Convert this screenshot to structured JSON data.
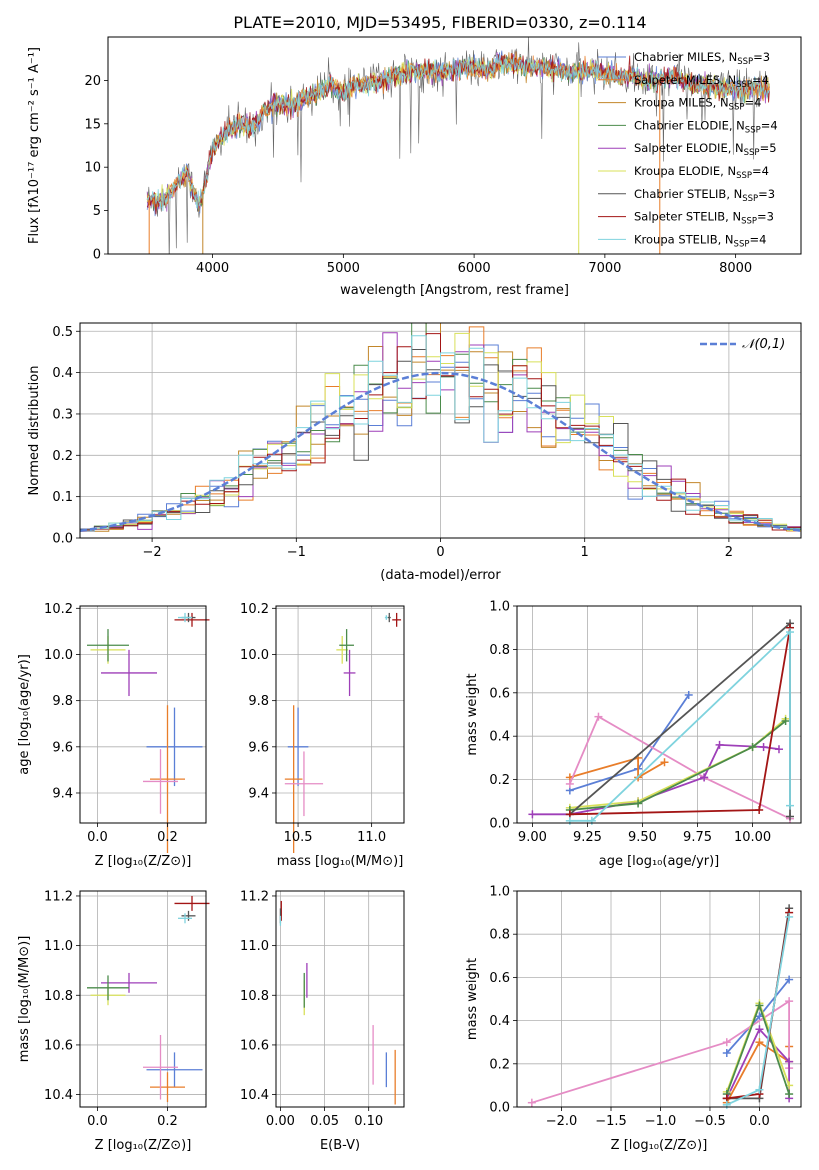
{
  "figure": {
    "title": "PLATE=2010, MJD=53495, FIBERID=0330, z=0.114"
  },
  "chart_data": [
    {
      "id": "spectrum",
      "type": "line",
      "xlabel": "wavelength [Angstrom, rest frame]",
      "ylabel": "Flux [fλ10⁻¹⁷ erg cm⁻² s⁻¹ A⁻¹]",
      "xlim": [
        3200,
        8500
      ],
      "ylim": [
        0,
        25
      ],
      "xticks": [
        4000,
        5000,
        6000,
        7000,
        8000
      ],
      "yticks": [
        0,
        5,
        10,
        15,
        20
      ],
      "grid": false,
      "legend_position": "right",
      "x": [
        3520,
        3600,
        3700,
        3800,
        3900,
        4000,
        4100,
        4200,
        4300,
        4400,
        4500,
        4600,
        4700,
        4800,
        4900,
        5000,
        5100,
        5200,
        5300,
        5400,
        5500,
        5600,
        5700,
        5800,
        5900,
        6000,
        6100,
        6200,
        6300,
        6400,
        6500,
        6600,
        6700,
        6800,
        6900,
        7000,
        7100,
        7200,
        7300,
        7400,
        7500,
        7600,
        7700,
        7800,
        7900,
        8000,
        8100,
        8260
      ],
      "y": [
        6.2,
        6.0,
        7.5,
        9.5,
        5.5,
        12.0,
        14.0,
        15.0,
        14.5,
        16.5,
        17.5,
        17.0,
        18.0,
        18.5,
        19.5,
        18.5,
        19.5,
        19.5,
        20.0,
        20.5,
        21.0,
        21.0,
        21.0,
        21.0,
        21.5,
        21.5,
        21.0,
        22.0,
        22.0,
        21.5,
        21.5,
        21.5,
        21.0,
        21.0,
        21.0,
        21.0,
        20.5,
        20.5,
        20.0,
        20.0,
        20.5,
        20.0,
        19.5,
        19.5,
        19.0,
        19.0,
        19.0,
        19.0
      ],
      "series": [
        {
          "name": "Chabrier MILES, N_SSP=3",
          "color": "#5b7fd6"
        },
        {
          "name": "Salpeter MILES, N_SSP=4",
          "color": "#e87d2a"
        },
        {
          "name": "Kroupa MILES, N_SSP=4",
          "color": "#c2862a"
        },
        {
          "name": "Chabrier ELODIE, N_SSP=4",
          "color": "#4b8b4b"
        },
        {
          "name": "Salpeter ELODIE, N_SSP=5",
          "color": "#9e3fb8"
        },
        {
          "name": "Kroupa ELODIE, N_SSP=4",
          "color": "#d8e05a"
        },
        {
          "name": "Chabrier STELIB, N_SSP=3",
          "color": "#555555"
        },
        {
          "name": "Salpeter STELIB, N_SSP=3",
          "color": "#a31515"
        },
        {
          "name": "Kroupa STELIB, N_SSP=4",
          "color": "#7fd3de"
        }
      ],
      "legend_labels": [
        {
          "pre": "Chabrier MILES, N",
          "sub": "SSP",
          "post": "=3"
        },
        {
          "pre": "Salpeter MILES, N",
          "sub": "SSP",
          "post": "=4"
        },
        {
          "pre": "Kroupa MILES, N",
          "sub": "SSP",
          "post": "=4"
        },
        {
          "pre": "Chabrier ELODIE, N",
          "sub": "SSP",
          "post": "=4"
        },
        {
          "pre": "Salpeter ELODIE, N",
          "sub": "SSP",
          "post": "=5"
        },
        {
          "pre": "Kroupa ELODIE, N",
          "sub": "SSP",
          "post": "=4"
        },
        {
          "pre": "Chabrier STELIB, N",
          "sub": "SSP",
          "post": "=3"
        },
        {
          "pre": "Salpeter STELIB, N",
          "sub": "SSP",
          "post": "=3"
        },
        {
          "pre": "Kroupa STELIB, N",
          "sub": "SSP",
          "post": "=4"
        }
      ]
    },
    {
      "id": "residuals",
      "type": "line",
      "xlabel": "(data-model)/error",
      "ylabel": "Normed distribution",
      "xlim": [
        -2.5,
        2.5
      ],
      "ylim": [
        0,
        0.52
      ],
      "xticks": [
        -2,
        -1,
        0,
        1,
        2
      ],
      "xtick_labels": [
        "−2",
        "−1",
        "0",
        "1",
        "2"
      ],
      "yticks": [
        0.0,
        0.1,
        0.2,
        0.3,
        0.4,
        0.5
      ],
      "ytick_labels": [
        "0.0",
        "0.1",
        "0.2",
        "0.3",
        "0.4",
        "0.5"
      ],
      "grid": true,
      "legend_position": "top-right",
      "reference_curve": {
        "name": "𝒩(0,1)",
        "color": "#5b7fd6",
        "mean": 0,
        "sigma": 1
      },
      "bin_width": 0.1
    },
    {
      "id": "age-vs-Z",
      "type": "scatter",
      "xlabel": "Z [log₁₀(Z/Z⊙)]",
      "ylabel": "age  [log₁₀(age/yr)]",
      "xlim": [
        -0.05,
        0.31
      ],
      "ylim": [
        9.27,
        10.21
      ],
      "xticks": [
        0.0,
        0.2
      ],
      "xtick_labels": [
        "0.0",
        "0.2"
      ],
      "yticks": [
        9.4,
        9.6,
        9.8,
        10.0,
        10.2
      ],
      "ytick_labels": [
        "9.4",
        "9.6",
        "9.8",
        "10.0",
        "10.2"
      ],
      "grid": true,
      "points": [
        {
          "x": 0.22,
          "y": 9.6,
          "xerr": 0.08,
          "yerr": 0.17,
          "color": "#5b7fd6"
        },
        {
          "x": 0.2,
          "y": 9.46,
          "xerr": 0.05,
          "yerr": 0.32,
          "color": "#e87d2a"
        },
        {
          "x": 0.18,
          "y": 9.45,
          "xerr": 0.05,
          "yerr": 0.14,
          "color": "#e58cc5"
        },
        {
          "x": 0.09,
          "y": 9.92,
          "xerr": 0.08,
          "yerr": 0.1,
          "color": "#9e3fb8"
        },
        {
          "x": 0.03,
          "y": 10.02,
          "xerr": 0.05,
          "yerr": 0.06,
          "color": "#d8e05a"
        },
        {
          "x": 0.03,
          "y": 10.04,
          "xerr": 0.06,
          "yerr": 0.07,
          "color": "#4b8b4b"
        },
        {
          "x": 0.27,
          "y": 10.15,
          "xerr": 0.05,
          "yerr": 0.03,
          "color": "#a31515"
        },
        {
          "x": 0.26,
          "y": 10.16,
          "xerr": 0.02,
          "yerr": 0.02,
          "color": "#555555"
        },
        {
          "x": 0.25,
          "y": 10.16,
          "xerr": 0.02,
          "yerr": 0.02,
          "color": "#7fd3de"
        }
      ]
    },
    {
      "id": "age-vs-mass",
      "type": "scatter",
      "xlabel": "mass [log₁₀(M/M⊙)]",
      "ylabel": "",
      "xlim": [
        10.35,
        11.22
      ],
      "ylim": [
        9.27,
        10.21
      ],
      "xticks": [
        10.5,
        11.0
      ],
      "xtick_labels": [
        "10.5",
        "11.0"
      ],
      "yticks": [
        9.4,
        9.6,
        9.8,
        10.0,
        10.2
      ],
      "ytick_labels": [
        "9.4",
        "9.6",
        "9.8",
        "10.0",
        "10.2"
      ],
      "grid": true,
      "points": [
        {
          "x": 10.5,
          "y": 9.6,
          "xerr": 0.07,
          "yerr": 0.17,
          "color": "#5b7fd6"
        },
        {
          "x": 10.47,
          "y": 9.46,
          "xerr": 0.06,
          "yerr": 0.32,
          "color": "#e87d2a"
        },
        {
          "x": 10.54,
          "y": 9.44,
          "xerr": 0.13,
          "yerr": 0.14,
          "color": "#e58cc5"
        },
        {
          "x": 10.85,
          "y": 9.92,
          "xerr": 0.04,
          "yerr": 0.1,
          "color": "#9e3fb8"
        },
        {
          "x": 10.8,
          "y": 10.02,
          "xerr": 0.04,
          "yerr": 0.06,
          "color": "#d8e05a"
        },
        {
          "x": 10.83,
          "y": 10.04,
          "xerr": 0.05,
          "yerr": 0.07,
          "color": "#4b8b4b"
        },
        {
          "x": 11.17,
          "y": 10.15,
          "xerr": 0.03,
          "yerr": 0.03,
          "color": "#a31515"
        },
        {
          "x": 11.12,
          "y": 10.16,
          "xerr": 0.01,
          "yerr": 0.02,
          "color": "#555555"
        },
        {
          "x": 11.1,
          "y": 10.16,
          "xerr": 0.01,
          "yerr": 0.01,
          "color": "#7fd3de"
        }
      ]
    },
    {
      "id": "massweight-vs-age",
      "type": "line",
      "xlabel": "age  [log₁₀(age/yr)]",
      "ylabel": "mass weight",
      "xlim": [
        8.93,
        10.22
      ],
      "ylim": [
        0,
        1
      ],
      "xticks": [
        9.0,
        9.25,
        9.5,
        9.75,
        10.0
      ],
      "xtick_labels": [
        "9.00",
        "9.25",
        "9.50",
        "9.75",
        "10.00"
      ],
      "yticks": [
        0.0,
        0.2,
        0.4,
        0.6,
        0.8,
        1.0
      ],
      "ytick_labels": [
        "0.0",
        "0.2",
        "0.4",
        "0.6",
        "0.8",
        "1.0"
      ],
      "grid": true,
      "series": [
        {
          "color": "#5b7fd6",
          "points": [
            [
              9.17,
              0.15
            ],
            [
              9.48,
              0.25
            ],
            [
              9.71,
              0.59
            ]
          ]
        },
        {
          "color": "#e87d2a",
          "points": [
            [
              9.17,
              0.21
            ],
            [
              9.48,
              0.3
            ],
            [
              9.48,
              0.21
            ],
            [
              9.6,
              0.28
            ]
          ]
        },
        {
          "color": "#e58cc5",
          "points": [
            [
              9.17,
              0.18
            ],
            [
              9.3,
              0.49
            ],
            [
              9.78,
              0.21
            ],
            [
              10.17,
              0.02
            ]
          ]
        },
        {
          "color": "#9e3fb8",
          "points": [
            [
              9.0,
              0.04
            ],
            [
              9.17,
              0.04
            ],
            [
              9.48,
              0.1
            ],
            [
              9.78,
              0.21
            ],
            [
              9.85,
              0.36
            ],
            [
              10.05,
              0.35
            ],
            [
              10.12,
              0.34
            ]
          ]
        },
        {
          "color": "#d8e05a",
          "points": [
            [
              9.17,
              0.07
            ],
            [
              9.48,
              0.1
            ],
            [
              10.0,
              0.35
            ],
            [
              10.15,
              0.48
            ]
          ]
        },
        {
          "color": "#4b8b4b",
          "points": [
            [
              9.17,
              0.06
            ],
            [
              9.48,
              0.09
            ],
            [
              10.0,
              0.35
            ],
            [
              10.15,
              0.47
            ]
          ]
        },
        {
          "color": "#555555",
          "points": [
            [
              9.17,
              0.04
            ],
            [
              10.17,
              0.92
            ],
            [
              10.17,
              0.03
            ]
          ]
        },
        {
          "color": "#a31515",
          "points": [
            [
              9.17,
              0.04
            ],
            [
              10.03,
              0.06
            ],
            [
              10.17,
              0.9
            ]
          ]
        },
        {
          "color": "#7fd3de",
          "points": [
            [
              9.17,
              0.01
            ],
            [
              9.27,
              0.01
            ],
            [
              10.17,
              0.88
            ],
            [
              10.17,
              0.08
            ]
          ]
        }
      ]
    },
    {
      "id": "mass-vs-Z",
      "type": "scatter",
      "xlabel": "Z [log₁₀(Z/Z⊙)]",
      "ylabel": "mass [log₁₀(M/M⊙)]",
      "xlim": [
        -0.05,
        0.31
      ],
      "ylim": [
        10.35,
        11.22
      ],
      "xticks": [
        0.0,
        0.2
      ],
      "xtick_labels": [
        "0.0",
        "0.2"
      ],
      "yticks": [
        10.4,
        10.6,
        10.8,
        11.0,
        11.2
      ],
      "ytick_labels": [
        "10.4",
        "10.6",
        "10.8",
        "11.0",
        "11.2"
      ],
      "grid": true,
      "points": [
        {
          "x": 0.22,
          "y": 10.5,
          "xerr": 0.08,
          "yerr": 0.07,
          "color": "#5b7fd6"
        },
        {
          "x": 0.2,
          "y": 10.43,
          "xerr": 0.05,
          "yerr": 0.06,
          "color": "#e87d2a"
        },
        {
          "x": 0.18,
          "y": 10.51,
          "xerr": 0.05,
          "yerr": 0.13,
          "color": "#e58cc5"
        },
        {
          "x": 0.09,
          "y": 10.85,
          "xerr": 0.08,
          "yerr": 0.04,
          "color": "#9e3fb8"
        },
        {
          "x": 0.03,
          "y": 10.8,
          "xerr": 0.05,
          "yerr": 0.04,
          "color": "#d8e05a"
        },
        {
          "x": 0.03,
          "y": 10.83,
          "xerr": 0.06,
          "yerr": 0.05,
          "color": "#4b8b4b"
        },
        {
          "x": 0.27,
          "y": 11.17,
          "xerr": 0.05,
          "yerr": 0.03,
          "color": "#a31515"
        },
        {
          "x": 0.26,
          "y": 11.12,
          "xerr": 0.02,
          "yerr": 0.02,
          "color": "#555555"
        },
        {
          "x": 0.25,
          "y": 11.11,
          "xerr": 0.02,
          "yerr": 0.02,
          "color": "#7fd3de"
        }
      ]
    },
    {
      "id": "mass-vs-EBV",
      "type": "scatter",
      "xlabel": "E(B-V)",
      "ylabel": "",
      "xlim": [
        -0.005,
        0.14
      ],
      "ylim": [
        10.35,
        11.22
      ],
      "xticks": [
        0.0,
        0.05,
        0.1
      ],
      "xtick_labels": [
        "0.00",
        "0.05",
        "0.10"
      ],
      "yticks": [
        10.4,
        10.6,
        10.8,
        11.0,
        11.2
      ],
      "ytick_labels": [
        "10.4",
        "10.6",
        "10.8",
        "11.0",
        "11.2"
      ],
      "grid": true,
      "points": [
        {
          "x": 0.12,
          "y": 10.5,
          "xerr": 0,
          "yerr": 0.07,
          "color": "#5b7fd6"
        },
        {
          "x": 0.13,
          "y": 10.47,
          "xerr": 0,
          "yerr": 0.11,
          "color": "#e87d2a"
        },
        {
          "x": 0.105,
          "y": 10.56,
          "xerr": 0,
          "yerr": 0.12,
          "color": "#e58cc5"
        },
        {
          "x": 0.03,
          "y": 10.86,
          "xerr": 0,
          "yerr": 0.07,
          "color": "#9e3fb8"
        },
        {
          "x": 0.027,
          "y": 10.79,
          "xerr": 0,
          "yerr": 0.07,
          "color": "#d8e05a"
        },
        {
          "x": 0.027,
          "y": 10.82,
          "xerr": 0,
          "yerr": 0.07,
          "color": "#4b8b4b"
        },
        {
          "x": 0.001,
          "y": 11.14,
          "xerr": 0,
          "yerr": 0.04,
          "color": "#a31515"
        },
        {
          "x": 0.0,
          "y": 11.12,
          "xerr": 0,
          "yerr": 0.03,
          "color": "#555555"
        },
        {
          "x": 0.0,
          "y": 11.1,
          "xerr": 0,
          "yerr": 0.02,
          "color": "#7fd3de"
        }
      ]
    },
    {
      "id": "massweight-vs-Z",
      "type": "line",
      "xlabel": "Z [log₁₀(Z/Z⊙)]",
      "ylabel": "mass weight",
      "xlim": [
        -2.45,
        0.42
      ],
      "ylim": [
        0,
        1
      ],
      "xticks": [
        -2.0,
        -1.5,
        -1.0,
        -0.5,
        0.0
      ],
      "xtick_labels": [
        "−2.0",
        "−1.5",
        "−1.0",
        "−0.5",
        "0.0"
      ],
      "yticks": [
        0.0,
        0.2,
        0.4,
        0.6,
        0.8,
        1.0
      ],
      "ytick_labels": [
        "0.0",
        "0.2",
        "0.4",
        "0.6",
        "0.8",
        "1.0"
      ],
      "grid": true,
      "series": [
        {
          "color": "#5b7fd6",
          "points": [
            [
              -0.33,
              0.25
            ],
            [
              0.0,
              0.42
            ],
            [
              0.3,
              0.59
            ]
          ]
        },
        {
          "color": "#e87d2a",
          "points": [
            [
              -0.33,
              0.02
            ],
            [
              0.0,
              0.3
            ],
            [
              0.3,
              0.21
            ],
            [
              0.3,
              0.28
            ]
          ]
        },
        {
          "color": "#e58cc5",
          "points": [
            [
              -2.3,
              0.02
            ],
            [
              -0.33,
              0.3
            ],
            [
              0.3,
              0.49
            ],
            [
              0.3,
              0.18
            ]
          ]
        },
        {
          "color": "#9e3fb8",
          "points": [
            [
              -0.33,
              0.04
            ],
            [
              0.0,
              0.36
            ],
            [
              0.3,
              0.21
            ],
            [
              0.3,
              0.04
            ]
          ]
        },
        {
          "color": "#d8e05a",
          "points": [
            [
              -0.33,
              0.07
            ],
            [
              0.0,
              0.48
            ],
            [
              0.3,
              0.1
            ]
          ]
        },
        {
          "color": "#4b8b4b",
          "points": [
            [
              -0.33,
              0.06
            ],
            [
              0.0,
              0.47
            ],
            [
              0.3,
              0.06
            ]
          ]
        },
        {
          "color": "#555555",
          "points": [
            [
              -0.33,
              0.04
            ],
            [
              0.0,
              0.04
            ],
            [
              0.3,
              0.92
            ]
          ]
        },
        {
          "color": "#a31515",
          "points": [
            [
              -0.33,
              0.04
            ],
            [
              0.0,
              0.06
            ],
            [
              0.3,
              0.9
            ]
          ]
        },
        {
          "color": "#7fd3de",
          "points": [
            [
              -0.33,
              0.01
            ],
            [
              0.0,
              0.08
            ],
            [
              0.3,
              0.88
            ]
          ]
        }
      ]
    }
  ]
}
